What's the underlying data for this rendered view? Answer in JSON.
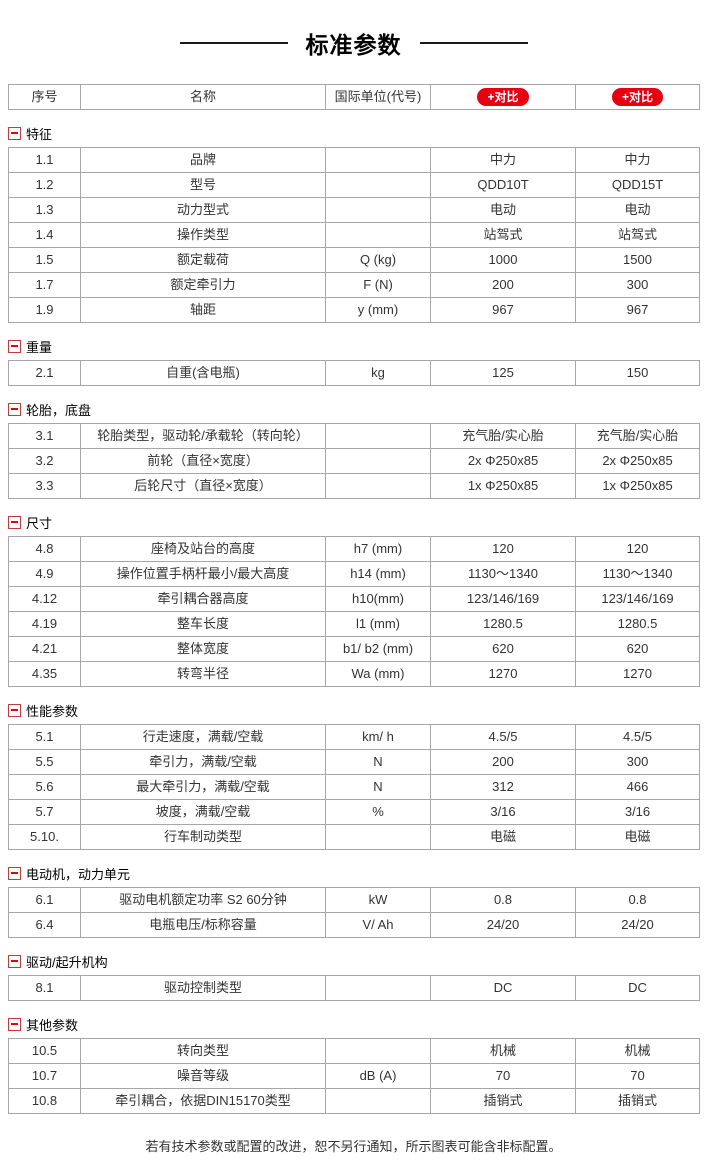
{
  "page": {
    "title": "标准参数"
  },
  "colors": {
    "accent_red": "#e60012",
    "table_border": "#a6a6a6"
  },
  "icons": {
    "section_collapse": "minus-box"
  },
  "header": {
    "col_no": "序号",
    "col_name": "名称",
    "col_unit": "国际单位(代号)",
    "compare_label": "+对比"
  },
  "sections": [
    {
      "title": "特征",
      "rows": [
        {
          "no": "1.1",
          "name": "品牌",
          "unit": "",
          "v1": "中力",
          "v2": "中力"
        },
        {
          "no": "1.2",
          "name": "型号",
          "unit": "",
          "v1": "QDD10T",
          "v2": "QDD15T"
        },
        {
          "no": "1.3",
          "name": "动力型式",
          "unit": "",
          "v1": "电动",
          "v2": "电动"
        },
        {
          "no": "1.4",
          "name": "操作类型",
          "unit": "",
          "v1": "站驾式",
          "v2": "站驾式"
        },
        {
          "no": "1.5",
          "name": "额定载荷",
          "unit": "Q (kg)",
          "v1": "1000",
          "v2": "1500"
        },
        {
          "no": "1.7",
          "name": "额定牵引力",
          "unit": "F (N)",
          "v1": "200",
          "v2": "300"
        },
        {
          "no": "1.9",
          "name": "轴距",
          "unit": "y (mm)",
          "v1": "967",
          "v2": "967"
        }
      ]
    },
    {
      "title": "重量",
      "rows": [
        {
          "no": "2.1",
          "name": "自重(含电瓶)",
          "unit": "kg",
          "v1": "125",
          "v2": "150"
        }
      ]
    },
    {
      "title": "轮胎，底盘",
      "rows": [
        {
          "no": "3.1",
          "name": "轮胎类型，驱动轮/承载轮（转向轮）",
          "unit": "",
          "v1": "充气胎/实心胎",
          "v2": "充气胎/实心胎"
        },
        {
          "no": "3.2",
          "name": "前轮（直径×宽度）",
          "unit": "",
          "v1": "2x Φ250x85",
          "v2": "2x Φ250x85"
        },
        {
          "no": "3.3",
          "name": "后轮尺寸（直径×宽度）",
          "unit": "",
          "v1": "1x Φ250x85",
          "v2": "1x Φ250x85"
        }
      ]
    },
    {
      "title": "尺寸",
      "rows": [
        {
          "no": "4.8",
          "name": "座椅及站台的高度",
          "unit": "h7 (mm)",
          "v1": "120",
          "v2": "120"
        },
        {
          "no": "4.9",
          "name": "操作位置手柄杆最小/最大高度",
          "unit": "h14 (mm)",
          "v1": "1130～1340",
          "v2": "1130～1340"
        },
        {
          "no": "4.12",
          "name": "牵引耦合器高度",
          "unit": "h10(mm)",
          "v1": "123/146/169",
          "v2": "123/146/169"
        },
        {
          "no": "4.19",
          "name": "整车长度",
          "unit": "l1 (mm)",
          "v1": "1280.5",
          "v2": "1280.5"
        },
        {
          "no": "4.21",
          "name": "整体宽度",
          "unit": "b1/ b2 (mm)",
          "v1": "620",
          "v2": "620"
        },
        {
          "no": "4.35",
          "name": "转弯半径",
          "unit": "Wa (mm)",
          "v1": "1270",
          "v2": "1270"
        }
      ]
    },
    {
      "title": "性能参数",
      "rows": [
        {
          "no": "5.1",
          "name": "行走速度，满载/空载",
          "unit": "km/ h",
          "v1": "4.5/5",
          "v2": "4.5/5"
        },
        {
          "no": "5.5",
          "name": "牵引力，满载/空载",
          "unit": "N",
          "v1": "200",
          "v2": "300"
        },
        {
          "no": "5.6",
          "name": "最大牵引力，满载/空载",
          "unit": "N",
          "v1": "312",
          "v2": "466"
        },
        {
          "no": "5.7",
          "name": "坡度，满载/空载",
          "unit": "%",
          "v1": "3/16",
          "v2": "3/16"
        },
        {
          "no": "5.10.",
          "name": "行车制动类型",
          "unit": "",
          "v1": "电磁",
          "v2": "电磁"
        }
      ]
    },
    {
      "title": "电动机，动力单元",
      "rows": [
        {
          "no": "6.1",
          "name": "驱动电机额定功率 S2 60分钟",
          "unit": "kW",
          "v1": "0.8",
          "v2": "0.8"
        },
        {
          "no": "6.4",
          "name": "电瓶电压/标称容量",
          "unit": "V/ Ah",
          "v1": "24/20",
          "v2": "24/20"
        }
      ]
    },
    {
      "title": "驱动/起升机构",
      "rows": [
        {
          "no": "8.1",
          "name": "驱动控制类型",
          "unit": "",
          "v1": "DC",
          "v2": "DC"
        }
      ]
    },
    {
      "title": "其他参数",
      "rows": [
        {
          "no": "10.5",
          "name": "转向类型",
          "unit": "",
          "v1": "机械",
          "v2": "机械"
        },
        {
          "no": "10.7",
          "name": "噪音等级",
          "unit": "dB (A)",
          "v1": "70",
          "v2": "70"
        },
        {
          "no": "10.8",
          "name": "牵引耦合，依据DIN15170类型",
          "unit": "",
          "v1": "插销式",
          "v2": "插销式"
        }
      ]
    }
  ],
  "footer": {
    "note": "若有技术参数或配置的改进，恕不另行通知，所示图表可能含非标配置。"
  }
}
